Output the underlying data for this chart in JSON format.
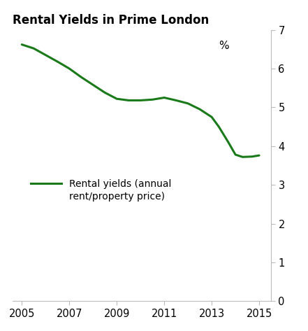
{
  "title": "Rental Yields in Prime London",
  "ylabel_label": "%",
  "line_color": "#1a7a1a",
  "line_width": 2.2,
  "x": [
    2005,
    2005.5,
    2006,
    2006.5,
    2007,
    2007.5,
    2008,
    2008.5,
    2009,
    2009.5,
    2010,
    2010.5,
    2011,
    2011.5,
    2012,
    2012.5,
    2013,
    2013.3,
    2013.7,
    2014,
    2014.3,
    2014.7,
    2015
  ],
  "y": [
    6.62,
    6.52,
    6.35,
    6.18,
    6.0,
    5.78,
    5.58,
    5.38,
    5.22,
    5.18,
    5.18,
    5.2,
    5.25,
    5.18,
    5.1,
    4.95,
    4.75,
    4.5,
    4.1,
    3.78,
    3.72,
    3.73,
    3.76
  ],
  "xlim": [
    2004.6,
    2015.5
  ],
  "ylim": [
    0,
    7
  ],
  "yticks": [
    0,
    1,
    2,
    3,
    4,
    5,
    6,
    7
  ],
  "xticks": [
    2005,
    2007,
    2009,
    2011,
    2013,
    2015
  ],
  "legend_label": "Rental yields (annual\nrent/property price)",
  "background_color": "#ffffff",
  "axis_color": "#bbbbbb",
  "title_fontsize": 12,
  "tick_fontsize": 10.5,
  "pct_label_fontsize": 11,
  "legend_fontsize": 10
}
